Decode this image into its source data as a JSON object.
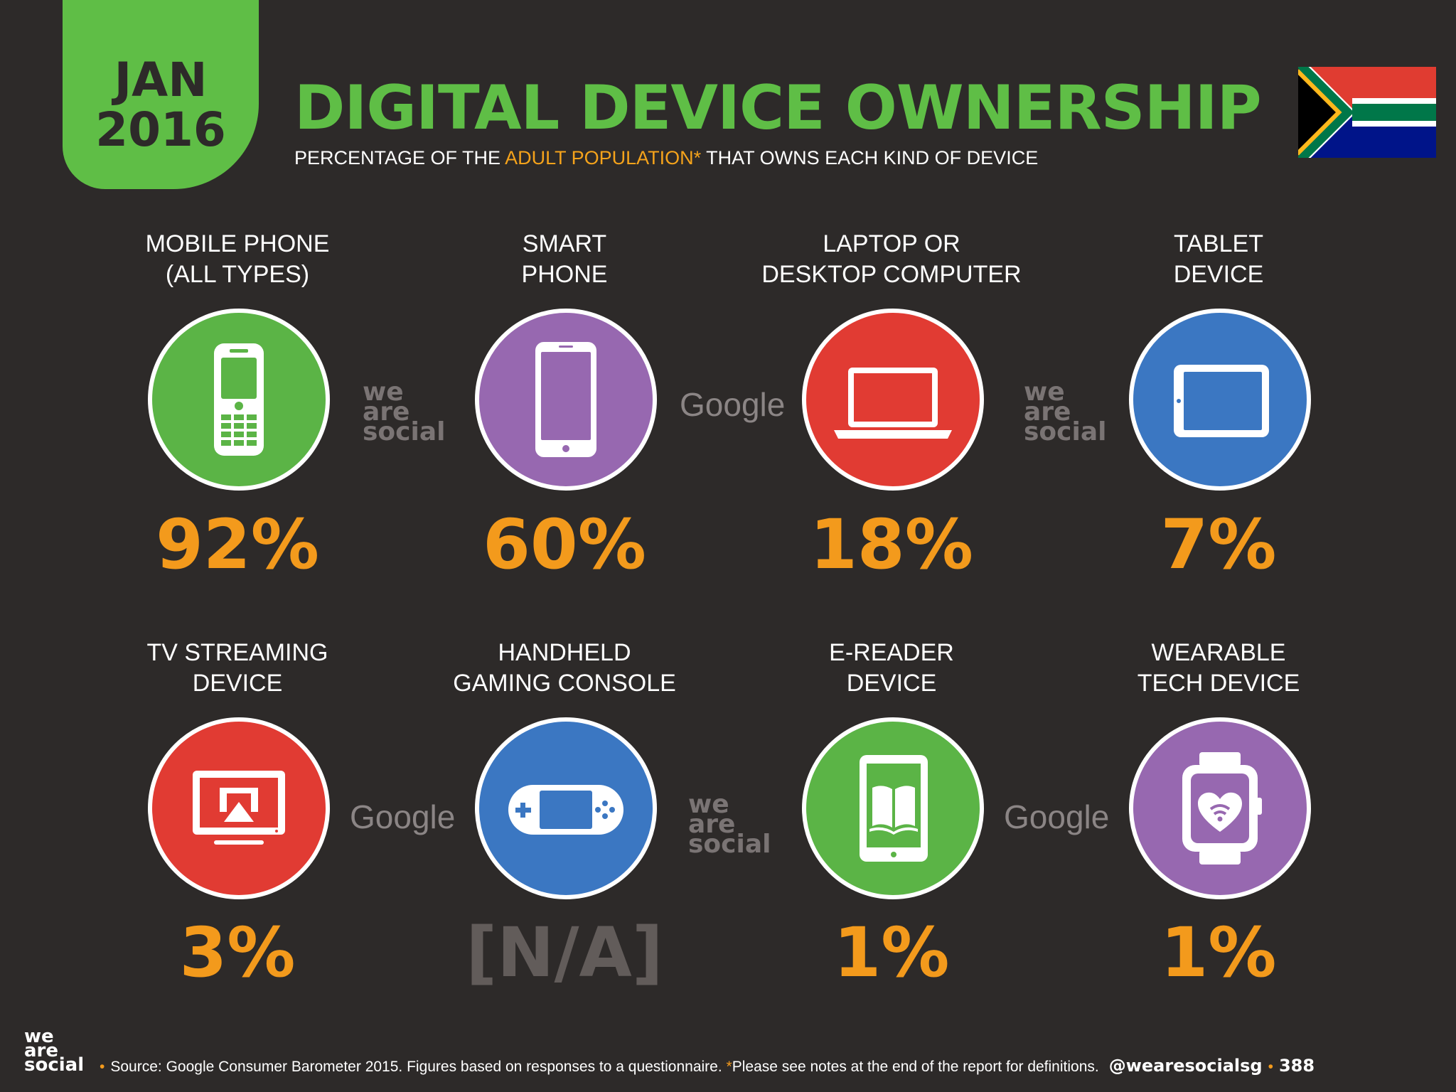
{
  "header": {
    "date_month": "JAN",
    "date_year": "2016",
    "title": "DIGITAL DEVICE OWNERSHIP",
    "subtitle_pre": "PERCENTAGE OF THE ",
    "subtitle_highlight": "ADULT POPULATION*",
    "subtitle_post": " THAT OWNS EACH KIND OF DEVICE",
    "flag_icon": "south-africa-flag"
  },
  "colors": {
    "background": "#2d2a29",
    "accent_green": "#5fbe46",
    "value_orange": "#f39a1c",
    "na_gray": "#625c5a"
  },
  "devices": [
    {
      "label_line1": "MOBILE PHONE",
      "label_line2": "(ALL TYPES)",
      "value": "92%",
      "icon": "mobile-phone-icon",
      "color": "#5bb446"
    },
    {
      "label_line1": "SMART",
      "label_line2": "PHONE",
      "value": "60%",
      "icon": "smartphone-icon",
      "color": "#9768b0"
    },
    {
      "label_line1": "LAPTOP OR",
      "label_line2": "DESKTOP COMPUTER",
      "value": "18%",
      "icon": "laptop-icon",
      "color": "#e13b33"
    },
    {
      "label_line1": "TABLET",
      "label_line2": "DEVICE",
      "value": "7%",
      "icon": "tablet-icon",
      "color": "#3b77c2"
    },
    {
      "label_line1": "TV STREAMING",
      "label_line2": "DEVICE",
      "value": "3%",
      "icon": "tv-streaming-icon",
      "color": "#e13b33"
    },
    {
      "label_line1": "HANDHELD",
      "label_line2": "GAMING CONSOLE",
      "value": "[N/A]",
      "icon": "gaming-console-icon",
      "color": "#3b77c2"
    },
    {
      "label_line1": "E-READER",
      "label_line2": "DEVICE",
      "value": "1%",
      "icon": "e-reader-icon",
      "color": "#5bb446"
    },
    {
      "label_line1": "WEARABLE",
      "label_line2": "TECH DEVICE",
      "value": "1%",
      "icon": "smartwatch-icon",
      "color": "#9768b0"
    }
  ],
  "watermarks": {
    "was_line1": "we",
    "was_line2": "are",
    "was_line3": "social",
    "google": "Google"
  },
  "footer": {
    "logo_line1": "we",
    "logo_line2": "are",
    "logo_line3": "social",
    "source": "Source: Google Consumer Barometer 2015. Figures based on responses to a questionnaire. ",
    "note": "*",
    "note_text": "Please see notes at the end of the report for definitions.",
    "handle": "@wearesocialsg",
    "page": "388"
  }
}
